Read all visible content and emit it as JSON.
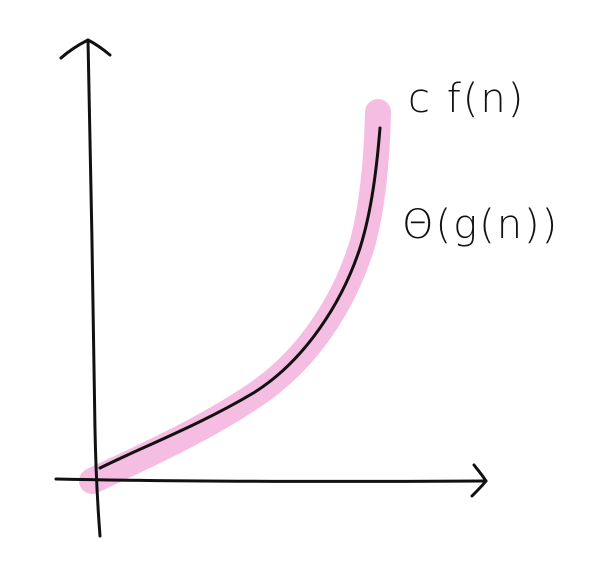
{
  "diagram": {
    "labels": {
      "upper_curve": "c f(n)",
      "band": "Θ(g(n))"
    },
    "colors": {
      "ink": "#111111",
      "highlight": "#f6bde3",
      "background": "#ffffff"
    }
  }
}
